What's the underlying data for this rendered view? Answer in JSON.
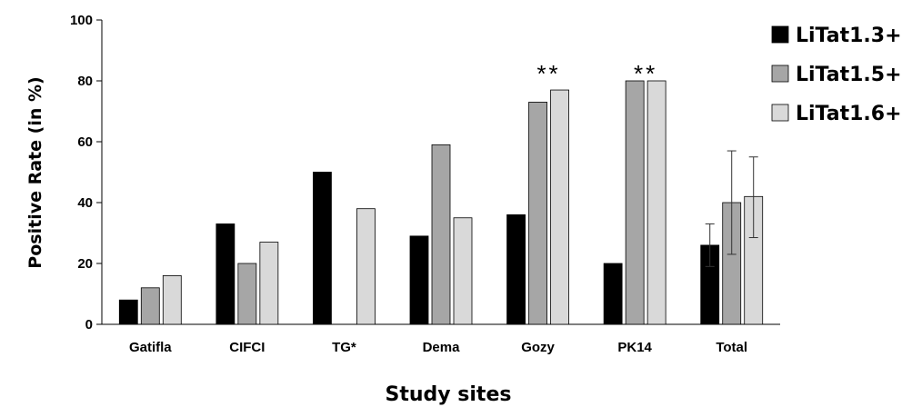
{
  "chart_data": {
    "type": "bar",
    "categories": [
      "Gatifla",
      "CIFCI",
      "TG*",
      "Dema",
      "Gozy",
      "PK14",
      "Total"
    ],
    "series": [
      {
        "name": "LiTat1.3+",
        "color": "#000000",
        "values": [
          8,
          33,
          50,
          29,
          36,
          20,
          26
        ]
      },
      {
        "name": "LiTat1.5+",
        "color": "#a6a6a6",
        "values": [
          12,
          20,
          0,
          59,
          73,
          80,
          40
        ]
      },
      {
        "name": "LiTat1.6+",
        "color": "#d9d9d9",
        "values": [
          16,
          27,
          38,
          35,
          77,
          80,
          42
        ]
      }
    ],
    "error_bars": {
      "category": "Total",
      "ranges": [
        [
          19,
          33
        ],
        [
          23,
          57
        ],
        [
          28.5,
          55
        ]
      ]
    },
    "annotations": [
      {
        "category": "Gozy",
        "text": "**"
      },
      {
        "category": "PK14",
        "text": "**"
      }
    ],
    "xlabel": "Study sites",
    "ylabel": "Positive Rate (in %)",
    "ylim": [
      0,
      100
    ],
    "yticks": [
      0,
      20,
      40,
      60,
      80,
      100
    ],
    "grid": false,
    "legend_position": "top-right"
  }
}
